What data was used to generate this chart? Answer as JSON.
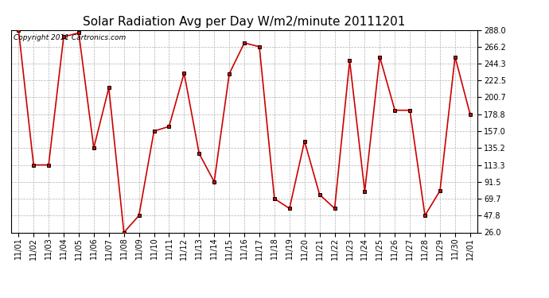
{
  "title": "Solar Radiation Avg per Day W/m2/minute 20111201",
  "copyright_text": "Copyright 2011 Cartronics.com",
  "dates": [
    "11/01",
    "11/02",
    "11/03",
    "11/04",
    "11/05",
    "11/06",
    "11/07",
    "11/08",
    "11/09",
    "11/10",
    "11/11",
    "11/12",
    "11/13",
    "11/14",
    "11/15",
    "11/16",
    "11/17",
    "11/18",
    "11/19",
    "11/20",
    "11/21",
    "11/22",
    "11/23",
    "11/24",
    "11/25",
    "11/26",
    "11/27",
    "11/28",
    "11/29",
    "11/30",
    "12/01"
  ],
  "values": [
    288.0,
    113.3,
    113.3,
    279.0,
    284.0,
    135.2,
    213.0,
    26.0,
    47.8,
    157.0,
    163.0,
    232.0,
    128.0,
    91.5,
    231.0,
    271.0,
    266.2,
    69.7,
    57.0,
    144.0,
    75.0,
    57.0,
    248.0,
    79.0,
    253.0,
    184.0,
    184.0,
    47.8,
    80.0,
    253.0,
    178.8
  ],
  "y_min": 26.0,
  "y_max": 288.0,
  "y_ticks": [
    26.0,
    47.8,
    69.7,
    91.5,
    113.3,
    135.2,
    157.0,
    178.8,
    200.7,
    222.5,
    244.3,
    266.2,
    288.0
  ],
  "line_color": "#cc0000",
  "marker_color": "#000000",
  "background_color": "#ffffff",
  "grid_color": "#b0b0b0",
  "title_fontsize": 11,
  "tick_fontsize": 7,
  "copyright_fontsize": 6.5
}
